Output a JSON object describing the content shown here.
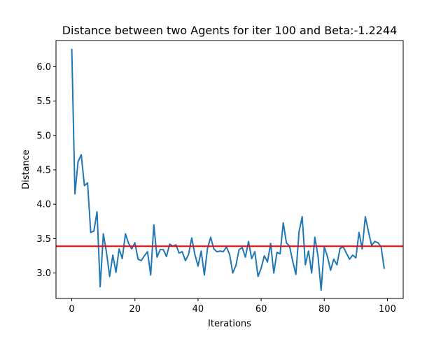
{
  "chart_data": {
    "type": "line",
    "title": "Distance between two Agents for iter 100 and Beta:-1.2244",
    "xlabel": "Iterations",
    "ylabel": "Distance",
    "xlim": [
      -5,
      105
    ],
    "ylim": [
      2.63,
      6.38
    ],
    "xticks": [
      0,
      20,
      40,
      60,
      80,
      100
    ],
    "yticks": [
      3.0,
      3.5,
      4.0,
      4.5,
      5.0,
      5.5,
      6.0
    ],
    "grid": false,
    "series": [
      {
        "color": "#1f77b4",
        "x": [
          0,
          1,
          2,
          3,
          4,
          5,
          6,
          7,
          8,
          9,
          10,
          11,
          12,
          13,
          14,
          15,
          16,
          17,
          18,
          19,
          20,
          21,
          22,
          23,
          24,
          25,
          26,
          27,
          28,
          29,
          30,
          31,
          32,
          33,
          34,
          35,
          36,
          37,
          38,
          39,
          40,
          41,
          42,
          43,
          44,
          45,
          46,
          47,
          48,
          49,
          50,
          51,
          52,
          53,
          54,
          55,
          56,
          57,
          58,
          59,
          60,
          61,
          62,
          63,
          64,
          65,
          66,
          67,
          68,
          69,
          70,
          71,
          72,
          73,
          74,
          75,
          76,
          77,
          78,
          79,
          80,
          81,
          82,
          83,
          84,
          85,
          86,
          87,
          88,
          89,
          90,
          91,
          92,
          93,
          94,
          95,
          96,
          97,
          98,
          99
        ],
        "values": [
          6.26,
          4.15,
          4.62,
          4.72,
          4.27,
          4.31,
          3.59,
          3.61,
          3.89,
          2.8,
          3.57,
          3.3,
          2.95,
          3.26,
          3.01,
          3.35,
          3.21,
          3.57,
          3.43,
          3.35,
          3.44,
          3.2,
          3.18,
          3.25,
          3.31,
          2.97,
          3.7,
          3.23,
          3.34,
          3.34,
          3.24,
          3.42,
          3.39,
          3.41,
          3.29,
          3.31,
          3.18,
          3.27,
          3.51,
          3.27,
          3.1,
          3.32,
          2.97,
          3.36,
          3.52,
          3.35,
          3.31,
          3.32,
          3.31,
          3.38,
          3.27,
          3.0,
          3.11,
          3.34,
          3.37,
          3.23,
          3.46,
          3.21,
          3.31,
          2.95,
          3.07,
          3.25,
          3.16,
          3.43,
          3.0,
          3.3,
          3.28,
          3.73,
          3.44,
          3.39,
          3.17,
          2.98,
          3.6,
          3.82,
          3.12,
          3.32,
          3.0,
          3.52,
          3.25,
          2.75,
          3.38,
          3.24,
          3.04,
          3.2,
          3.12,
          3.36,
          3.38,
          3.29,
          3.2,
          3.26,
          3.22,
          3.59,
          3.35,
          3.82,
          3.6,
          3.4,
          3.46,
          3.44,
          3.38,
          3.06
        ]
      }
    ],
    "hline": {
      "y": 3.39,
      "color": "#ff0000"
    }
  }
}
